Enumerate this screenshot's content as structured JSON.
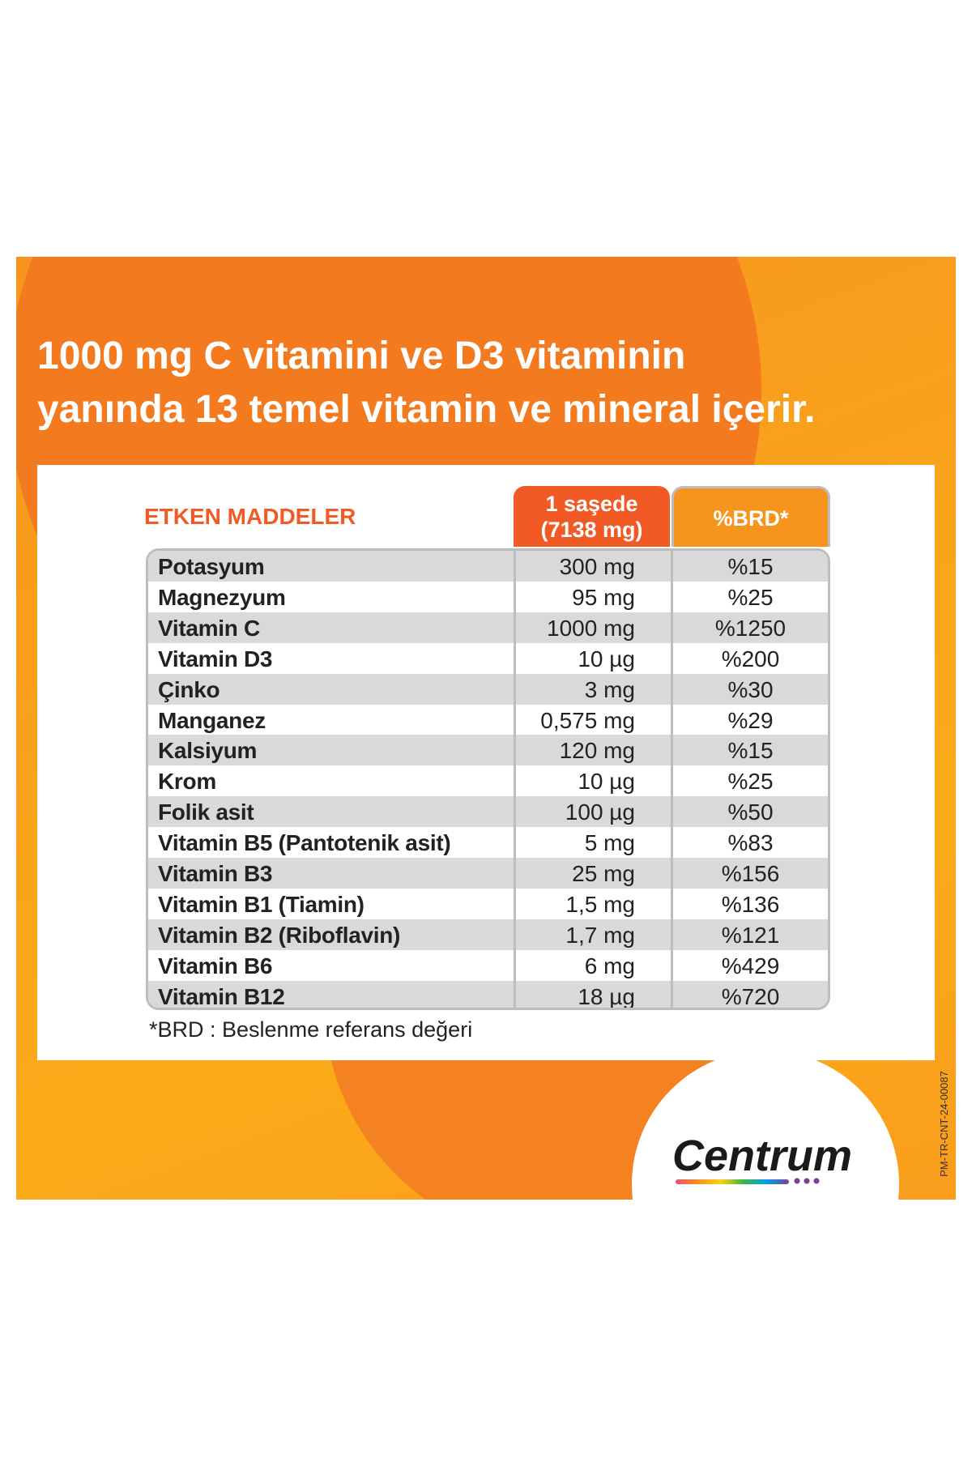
{
  "header": {
    "title_lines": [
      "1000 mg C vitamini ve D3 vitaminin",
      "yanında 13 temel vitamin ve mineral içerir."
    ]
  },
  "table": {
    "columns": [
      "ETKEN MADDELER",
      [
        "1 saşede",
        "(7138 mg)"
      ],
      "%BRD*"
    ],
    "rows": [
      [
        "Potasyum",
        "300 mg",
        "%15"
      ],
      [
        "Magnezyum",
        "95 mg",
        "%25"
      ],
      [
        "Vitamin C",
        "1000 mg",
        "%1250"
      ],
      [
        "Vitamin D3",
        "10 µg",
        "%200"
      ],
      [
        "Çinko",
        "3 mg",
        "%30"
      ],
      [
        "Manganez",
        "0,575 mg",
        "%29"
      ],
      [
        "Kalsiyum",
        "120 mg",
        "%15"
      ],
      [
        "Krom",
        "10 µg",
        "%25"
      ],
      [
        "Folik asit",
        "100 µg",
        "%50"
      ],
      [
        "Vitamin B5 (Pantotenik asit)",
        "5 mg",
        "%83"
      ],
      [
        "Vitamin B3",
        "25 mg",
        "%156"
      ],
      [
        "Vitamin B1 (Tiamin)",
        "1,5 mg",
        "%136"
      ],
      [
        "Vitamin B2 (Riboflavin)",
        "1,7 mg",
        "%121"
      ],
      [
        "Vitamin B6",
        "6 mg",
        "%429"
      ],
      [
        "Vitamin B12",
        "18 µg",
        "%720"
      ]
    ]
  },
  "footnote": "*BRD : Beslenme referans değeri",
  "brand": {
    "logo": "Centrum",
    "code": "PM-TR-CNT-24-00087"
  }
}
